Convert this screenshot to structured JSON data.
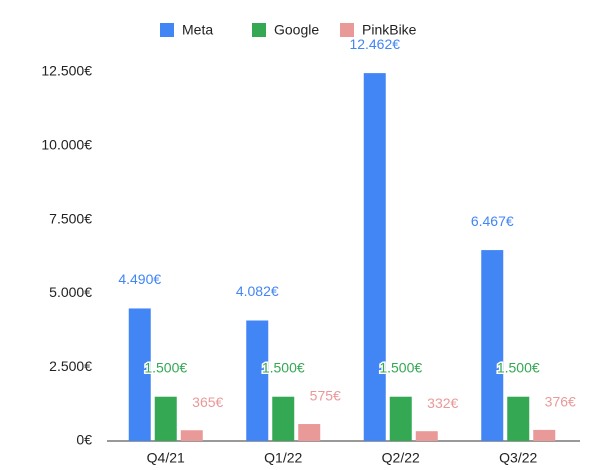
{
  "chart_data": {
    "type": "bar",
    "categories": [
      "Q4/21",
      "Q1/22",
      "Q2/22",
      "Q3/22"
    ],
    "series": [
      {
        "name": "Meta",
        "color": "#4285f4",
        "values": [
          4490,
          4082,
          12462,
          6467
        ],
        "value_labels": [
          "4.490€",
          "4.082€",
          "12.462€",
          "6.467€"
        ]
      },
      {
        "name": "Google",
        "color": "#34a853",
        "values": [
          1500,
          1500,
          1500,
          1500
        ],
        "value_labels": [
          "1.500€",
          "1.500€",
          "1.500€",
          "1.500€"
        ]
      },
      {
        "name": "PinkBike",
        "color": "#ea9999",
        "values": [
          365,
          575,
          332,
          376
        ],
        "value_labels": [
          "365€",
          "575€",
          "332€",
          "376€"
        ]
      }
    ],
    "ylim": [
      0,
      12500
    ],
    "yticks": [
      {
        "value": 0,
        "label": "0€"
      },
      {
        "value": 2500,
        "label": "2.500€"
      },
      {
        "value": 5000,
        "label": "5.000€"
      },
      {
        "value": 7500,
        "label": "7.500€"
      },
      {
        "value": 10000,
        "label": "10.000€"
      },
      {
        "value": 12500,
        "label": "12.500€"
      }
    ],
    "grid": false,
    "legend": "top"
  }
}
